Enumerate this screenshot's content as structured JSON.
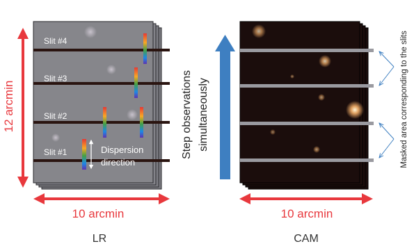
{
  "lr": {
    "title": "LR",
    "slits": [
      "Slit #4",
      "Slit #3",
      "Slit #2",
      "Slit #1"
    ],
    "dispersion_label_1": "Dispersion",
    "dispersion_label_2": "direction",
    "height_label": "12 arcmin",
    "width_label": "10 arcmin"
  },
  "cam": {
    "title": "CAM",
    "width_label": "10 arcmin"
  },
  "step_label_1": "Step observations",
  "step_label_2": "simultaneously",
  "mask_label": "Masked area corresponding to the slits",
  "colors": {
    "red_arrow": "#e8383d",
    "blue_arrow": "#3e7fc1",
    "lr_panel": "#86868b",
    "cam_panel": "#1b0d0c",
    "slit_band": "#9a9aa0"
  }
}
